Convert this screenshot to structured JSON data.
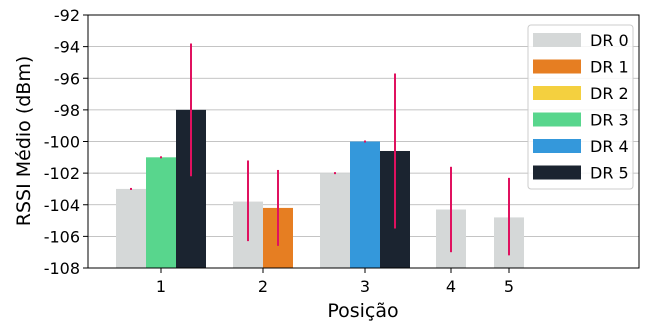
{
  "chart_data": {
    "type": "bar",
    "xlabel": "Posição",
    "ylabel": "RSSI Médio (dBm)",
    "ylim": [
      -108,
      -92
    ],
    "yticks": [
      -92,
      -94,
      -96,
      -98,
      -100,
      -102,
      -104,
      -106,
      -108
    ],
    "categories": [
      "1",
      "2",
      "3",
      "4",
      "5"
    ],
    "legend_position": "top-right",
    "grid": "horizontal",
    "series": [
      {
        "name": "DR 0",
        "color": "#d5d8d8",
        "values": [
          -103.0,
          -103.8,
          -102.0,
          -104.3,
          -104.8
        ],
        "err_lo": [
          -103.0,
          -106.3,
          -102.0,
          -107.0,
          -107.2
        ],
        "err_hi": [
          -103.0,
          -101.2,
          -102.0,
          -101.6,
          -102.3
        ]
      },
      {
        "name": "DR 1",
        "color": "#e67e22",
        "values": [
          null,
          -104.2,
          null,
          null,
          null
        ],
        "err_lo": [
          null,
          -106.6,
          null,
          null,
          null
        ],
        "err_hi": [
          null,
          -101.8,
          null,
          null,
          null
        ]
      },
      {
        "name": "DR 2",
        "color": "#f4d03f",
        "values": [
          null,
          null,
          null,
          null,
          null
        ],
        "err_lo": [
          null,
          null,
          null,
          null,
          null
        ],
        "err_hi": [
          null,
          null,
          null,
          null,
          null
        ]
      },
      {
        "name": "DR 3",
        "color": "#58d68d",
        "values": [
          -101.0,
          null,
          null,
          null,
          null
        ],
        "err_lo": [
          -101.0,
          null,
          null,
          null,
          null
        ],
        "err_hi": [
          -101.0,
          null,
          null,
          null,
          null
        ]
      },
      {
        "name": "DR 4",
        "color": "#3498db",
        "values": [
          null,
          null,
          -100.0,
          null,
          null
        ],
        "err_lo": [
          null,
          null,
          -100.0,
          null,
          null
        ],
        "err_hi": [
          null,
          null,
          -100.0,
          null,
          null
        ]
      },
      {
        "name": "DR 5",
        "color": "#1b2430",
        "values": [
          -98.0,
          null,
          -100.6,
          null,
          null
        ],
        "err_lo": [
          -102.2,
          null,
          -105.5,
          null,
          null
        ],
        "err_hi": [
          -93.8,
          null,
          -95.7,
          null,
          null
        ]
      }
    ],
    "error_bar_color": "#e0115f"
  }
}
